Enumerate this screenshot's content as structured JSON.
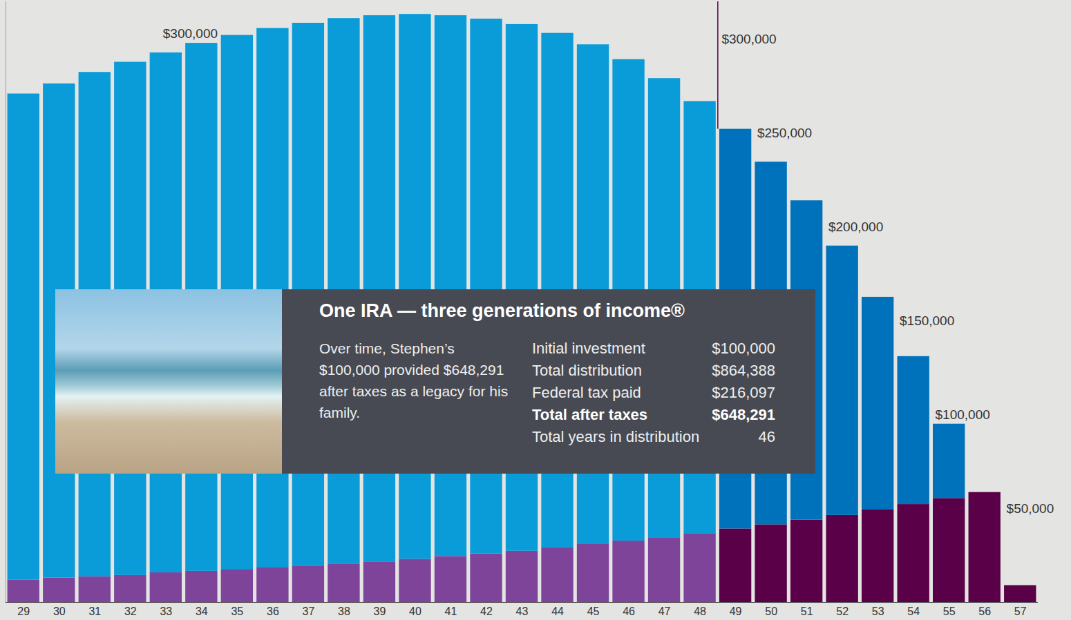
{
  "chart_data": {
    "type": "bar",
    "stacked": true,
    "grid": false,
    "x": [
      29,
      30,
      31,
      32,
      33,
      34,
      35,
      36,
      37,
      38,
      39,
      40,
      41,
      42,
      43,
      44,
      45,
      46,
      47,
      48,
      49,
      50,
      51,
      52,
      53,
      54,
      55,
      56,
      57
    ],
    "xlim": [
      28.5,
      57.5
    ],
    "xticks": [
      29,
      30,
      31,
      32,
      33,
      34,
      35,
      36,
      37,
      38,
      39,
      40,
      41,
      42,
      43,
      44,
      45,
      46,
      47,
      48,
      49,
      50,
      51,
      52,
      53,
      54,
      55,
      56,
      57
    ],
    "ylim": [
      0,
      320000
    ],
    "yticks": [
      {
        "value": 50000,
        "label": "$50,000"
      },
      {
        "value": 100000,
        "label": "$100,000"
      },
      {
        "value": 150000,
        "label": "$150,000"
      },
      {
        "value": 200000,
        "label": "$200,000"
      },
      {
        "value": 250000,
        "label": "$250,000"
      },
      {
        "value": 300000,
        "label": "$300,000"
      }
    ],
    "series": [
      {
        "color": "#7e449a",
        "values": [
          11900,
          13000,
          13700,
          14400,
          15800,
          16600,
          17600,
          18700,
          19400,
          20500,
          21600,
          23000,
          24500,
          25900,
          27300,
          29100,
          30900,
          32700,
          34500,
          36700,
          null,
          null,
          null,
          null,
          null,
          null,
          null,
          null,
          null
        ]
      },
      {
        "color": "#5a0049",
        "values": [
          null,
          null,
          null,
          null,
          null,
          null,
          null,
          null,
          null,
          null,
          null,
          null,
          null,
          null,
          null,
          null,
          null,
          null,
          null,
          null,
          39200,
          41400,
          43900,
          46400,
          49300,
          52200,
          55400,
          58600,
          9000
        ]
      },
      {
        "color": "#0a9bd9",
        "values": [
          259000,
          263300,
          268700,
          273400,
          277000,
          281300,
          284500,
          287100,
          289200,
          290600,
          291000,
          290300,
          288100,
          284900,
          280600,
          274100,
          266200,
          256500,
          244600,
          230200,
          null,
          null,
          null,
          null,
          null,
          null,
          null,
          null,
          null
        ]
      },
      {
        "color": "#0072bb",
        "values": [
          null,
          null,
          null,
          null,
          null,
          null,
          null,
          null,
          null,
          null,
          null,
          null,
          null,
          null,
          null,
          null,
          null,
          null,
          null,
          null,
          212900,
          193200,
          170100,
          143500,
          113300,
          78800,
          39600,
          null,
          null
        ]
      }
    ],
    "annotation": {
      "title": "One IRA — three generations of income®",
      "text": "Over time, Stephen’s $100,000 provided $648,291 after taxes as a legacy for his family.",
      "table": [
        [
          "Initial investment",
          "$100,000"
        ],
        [
          "Total distribution",
          "$864,388"
        ],
        [
          "Federal tax paid",
          "$216,097"
        ],
        [
          "Total after taxes",
          "$648,291"
        ],
        [
          "Total years in distribution",
          "46"
        ]
      ]
    }
  }
}
